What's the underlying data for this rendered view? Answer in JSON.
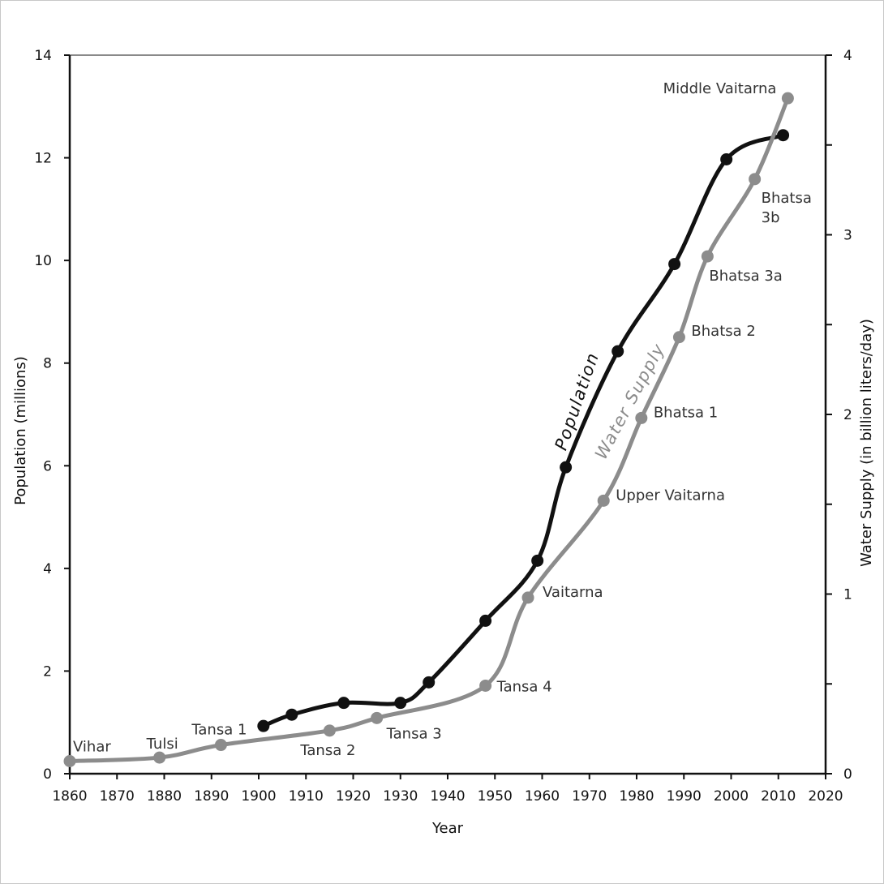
{
  "chart_data": {
    "type": "line",
    "x_axis": {
      "label": "Year",
      "ticks": [
        "1860",
        "1870",
        "1880",
        "1890",
        "1900",
        "1910",
        "1920",
        "1930",
        "1940",
        "1950",
        "1960",
        "1970",
        "1980",
        "1990",
        "2000",
        "2010",
        "2020"
      ],
      "range": [
        1860,
        2020
      ]
    },
    "y_axis_left": {
      "label": "Population (millions)",
      "ticks": [
        "0",
        "2",
        "4",
        "6",
        "8",
        "10",
        "12",
        "14"
      ],
      "range": [
        0,
        14
      ]
    },
    "y_axis_right": {
      "label": "Water Supply (in billion liters/day)",
      "ticks": [
        "0",
        "1",
        "2",
        "3",
        "4"
      ],
      "range": [
        0,
        4
      ]
    },
    "grid": false,
    "series": [
      {
        "name": "Population",
        "axis": "left",
        "color": "#111111",
        "points": [
          {
            "x": 1901,
            "y": 0.93
          },
          {
            "x": 1907,
            "y": 1.15
          },
          {
            "x": 1918,
            "y": 1.38
          },
          {
            "x": 1930,
            "y": 1.38
          },
          {
            "x": 1936,
            "y": 1.78
          },
          {
            "x": 1948,
            "y": 2.98
          },
          {
            "x": 1959,
            "y": 4.15
          },
          {
            "x": 1965,
            "y": 5.97
          },
          {
            "x": 1976,
            "y": 8.23
          },
          {
            "x": 1988,
            "y": 9.93
          },
          {
            "x": 1999,
            "y": 11.97
          },
          {
            "x": 2011,
            "y": 12.44
          }
        ]
      },
      {
        "name": "Water Supply",
        "axis": "right",
        "color": "#8c8c8c",
        "points": [
          {
            "x": 1860,
            "y": 0.07,
            "label": "Vihar"
          },
          {
            "x": 1879,
            "y": 0.09,
            "label": "Tulsi"
          },
          {
            "x": 1892,
            "y": 0.16,
            "label": "Tansa 1"
          },
          {
            "x": 1915,
            "y": 0.24,
            "label": "Tansa 2"
          },
          {
            "x": 1925,
            "y": 0.31,
            "label": "Tansa 3"
          },
          {
            "x": 1948,
            "y": 0.49,
            "label": "Tansa 4"
          },
          {
            "x": 1957,
            "y": 0.98,
            "label": "Vaitarna"
          },
          {
            "x": 1973,
            "y": 1.52,
            "label": "Upper Vaitarna"
          },
          {
            "x": 1981,
            "y": 1.98,
            "label": "Bhatsa 1"
          },
          {
            "x": 1989,
            "y": 2.43,
            "label": "Bhatsa 2"
          },
          {
            "x": 1995,
            "y": 2.88,
            "label": "Bhatsa 3a"
          },
          {
            "x": 2005,
            "y": 3.31,
            "label": "Bhatsa\n3b"
          },
          {
            "x": 2012,
            "y": 3.76,
            "label": "Middle Vaitarna"
          }
        ]
      }
    ]
  }
}
